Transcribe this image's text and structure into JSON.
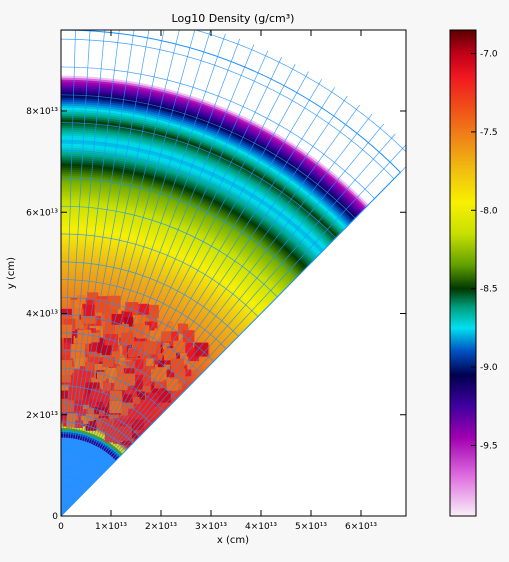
{
  "chart_data": {
    "type": "heatmap",
    "title": "Log10 Density (g/cm³)",
    "xlabel": "x (cm)",
    "ylabel": "y (cm)",
    "xlim": [
      0,
      69000000000000.0
    ],
    "ylim": [
      0,
      96000000000000.0
    ],
    "x_ticks": [
      {
        "value": 0,
        "label": "0"
      },
      {
        "value": 10000000000000.0,
        "label": "1×10¹³"
      },
      {
        "value": 20000000000000.0,
        "label": "2×10¹³"
      },
      {
        "value": 30000000000000.0,
        "label": "3×10¹³"
      },
      {
        "value": 40000000000000.0,
        "label": "4×10¹³"
      },
      {
        "value": 50000000000000.0,
        "label": "5×10¹³"
      },
      {
        "value": 60000000000000.0,
        "label": "6×10¹³"
      }
    ],
    "y_ticks": [
      {
        "value": 0,
        "label": "0"
      },
      {
        "value": 20000000000000.0,
        "label": "2×10¹³"
      },
      {
        "value": 40000000000000.0,
        "label": "4×10¹³"
      },
      {
        "value": 60000000000000.0,
        "label": "6×10¹³"
      },
      {
        "value": 80000000000000.0,
        "label": "8×10¹³"
      }
    ],
    "wedge_angle_from_y_axis_deg": 45,
    "outer_radius_cm": 96000000000000.0,
    "radial_profile": [
      {
        "r": 0.0,
        "log_density": -9.2
      },
      {
        "r": 16000000000000.0,
        "log_density": -9.2
      },
      {
        "r": 19000000000000.0,
        "log_density": -7.1
      },
      {
        "r": 36000000000000.0,
        "log_density": -7.3
      },
      {
        "r": 42000000000000.0,
        "log_density": -7.5
      },
      {
        "r": 50000000000000.0,
        "log_density": -7.7
      },
      {
        "r": 58000000000000.0,
        "log_density": -8.0
      },
      {
        "r": 66000000000000.0,
        "log_density": -8.3
      },
      {
        "r": 71000000000000.0,
        "log_density": -8.6
      },
      {
        "r": 74000000000000.0,
        "log_density": -8.8
      },
      {
        "r": 78000000000000.0,
        "log_density": -8.5
      },
      {
        "r": 82000000000000.0,
        "log_density": -8.9
      },
      {
        "r": 86000000000000.0,
        "log_density": -9.5
      },
      {
        "r": 87000000000000.0,
        "log_density": -9.95
      }
    ],
    "colorbar": {
      "range": [
        -9.95,
        -6.85
      ],
      "ticks": [
        {
          "value": -7.0,
          "label": "-7.0"
        },
        {
          "value": -7.5,
          "label": "-7.5"
        },
        {
          "value": -8.0,
          "label": "-8.0"
        },
        {
          "value": -8.5,
          "label": "-8.5"
        },
        {
          "value": -9.0,
          "label": "-9.0"
        },
        {
          "value": -9.5,
          "label": "-9.5"
        }
      ],
      "colors": [
        {
          "value": -6.85,
          "color": "#5a0000"
        },
        {
          "value": -7.0,
          "color": "#c00018"
        },
        {
          "value": -7.15,
          "color": "#f01820"
        },
        {
          "value": -7.35,
          "color": "#f05018"
        },
        {
          "value": -7.55,
          "color": "#f08818"
        },
        {
          "value": -7.75,
          "color": "#f0c010"
        },
        {
          "value": -7.95,
          "color": "#f8f000"
        },
        {
          "value": -8.15,
          "color": "#c8e000"
        },
        {
          "value": -8.35,
          "color": "#60a000"
        },
        {
          "value": -8.5,
          "color": "#003800"
        },
        {
          "value": -8.62,
          "color": "#00a080"
        },
        {
          "value": -8.75,
          "color": "#00e0f0"
        },
        {
          "value": -8.9,
          "color": "#0050c0"
        },
        {
          "value": -9.05,
          "color": "#000050"
        },
        {
          "value": -9.25,
          "color": "#4000a0"
        },
        {
          "value": -9.45,
          "color": "#a000b0"
        },
        {
          "value": -9.7,
          "color": "#e070e0"
        },
        {
          "value": -9.95,
          "color": "#f8f0f8"
        }
      ]
    },
    "grid_color": "#1e90ff",
    "dense_clump_color": "#c01830",
    "inner_core_color": "#2a90ff"
  }
}
